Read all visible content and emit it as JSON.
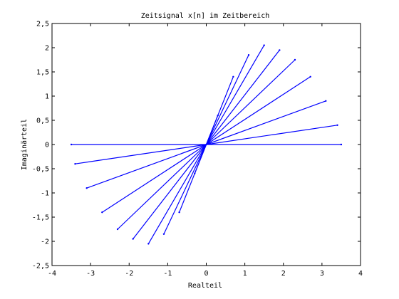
{
  "chart_data": {
    "type": "line",
    "title": "Zeitsignal x[n] im Zeitbereich",
    "xlabel": "Realteil",
    "ylabel": "Imaginärteil",
    "xlim": [
      -4,
      4
    ],
    "ylim": [
      -2.5,
      2.5
    ],
    "xticks": [
      -4,
      -3,
      -2,
      -1,
      0,
      1,
      2,
      3,
      4
    ],
    "xtick_labels": [
      "-4",
      "-3",
      "-2",
      "-1",
      "0",
      "1",
      "2",
      "3",
      "4"
    ],
    "yticks": [
      -2.5,
      -2,
      -1.5,
      -1,
      -0.5,
      0,
      0.5,
      1,
      1.5,
      2,
      2.5
    ],
    "ytick_labels": [
      "-2,5",
      "-2",
      "-1,5",
      "-1",
      "-0,5",
      "0",
      "0,5",
      "1",
      "1,5",
      "2",
      "2,5"
    ],
    "grid": false,
    "series": [
      {
        "color": "#0000ff",
        "x": [
          0,
          0.3,
          0.7,
          1.1,
          1.5,
          1.9,
          2.3,
          2.7,
          3.1,
          3.4,
          3.5,
          -0.3,
          -0.7,
          -1.1,
          -1.5,
          -1.9,
          -2.3,
          -2.7,
          -3.1,
          -3.4,
          -3.5
        ],
        "y": [
          0,
          0.6,
          1.4,
          1.85,
          2.05,
          1.95,
          1.75,
          1.4,
          0.9,
          0.4,
          0,
          -0.6,
          -1.4,
          -1.85,
          -2.05,
          -1.95,
          -1.75,
          -1.4,
          -0.9,
          -0.4,
          0
        ]
      }
    ]
  }
}
